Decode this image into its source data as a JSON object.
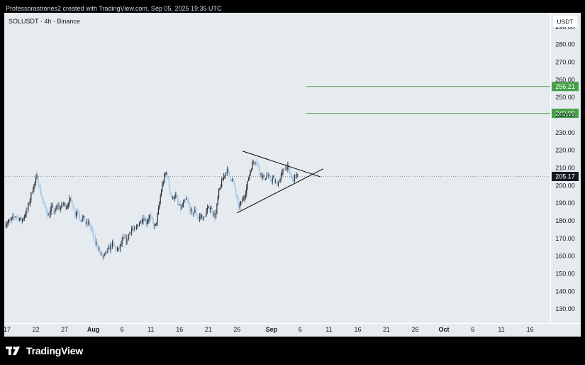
{
  "header": {
    "caption": "Professorastrones2 created with TradingView.com, Sep 05, 2025 19:35 UTC"
  },
  "footer": {
    "logo_text": "TradingView",
    "logo_icon": "tradingview-logo-icon"
  },
  "colors": {
    "page_background": "#000000",
    "chart_background": "#e6ebef",
    "candle_up": "#2b2e36",
    "candle_down": "#9fc6ea",
    "level_line": "#45a046",
    "price_badge": "#131722",
    "pattern_lines": "#000000"
  },
  "chart_data": {
    "type": "candlestick",
    "symbol_label": "SOLUSDT · 4h · Binance",
    "currency_label": "USDT",
    "ylim": [
      122,
      298
    ],
    "x_domain": [
      "2025-07-16T12:00",
      "2025-10-19T12:00"
    ],
    "y_ticks": [
      130,
      140,
      150,
      160,
      170,
      180,
      190,
      200,
      210,
      220,
      230,
      240,
      250,
      260,
      270,
      280,
      290
    ],
    "x_ticks": [
      {
        "label": "17",
        "date": "2025-07-17",
        "bold": false
      },
      {
        "label": "22",
        "date": "2025-07-22",
        "bold": false
      },
      {
        "label": "27",
        "date": "2025-07-27",
        "bold": false
      },
      {
        "label": "Aug",
        "date": "2025-08-01",
        "bold": true
      },
      {
        "label": "6",
        "date": "2025-08-06",
        "bold": false
      },
      {
        "label": "11",
        "date": "2025-08-11",
        "bold": false
      },
      {
        "label": "16",
        "date": "2025-08-16",
        "bold": false
      },
      {
        "label": "21",
        "date": "2025-08-21",
        "bold": false
      },
      {
        "label": "26",
        "date": "2025-08-26",
        "bold": false
      },
      {
        "label": "Sep",
        "date": "2025-09-01",
        "bold": true
      },
      {
        "label": "6",
        "date": "2025-09-06",
        "bold": false
      },
      {
        "label": "11",
        "date": "2025-09-11",
        "bold": false
      },
      {
        "label": "16",
        "date": "2025-09-16",
        "bold": false
      },
      {
        "label": "21",
        "date": "2025-09-21",
        "bold": false
      },
      {
        "label": "26",
        "date": "2025-09-26",
        "bold": false
      },
      {
        "label": "Oct",
        "date": "2025-10-01",
        "bold": true
      },
      {
        "label": "6",
        "date": "2025-10-06",
        "bold": false
      },
      {
        "label": "11",
        "date": "2025-10-11",
        "bold": false
      },
      {
        "label": "16",
        "date": "2025-10-16",
        "bold": false
      }
    ],
    "close_path": [
      {
        "date": "2025-07-16T12:00",
        "value": 178
      },
      {
        "date": "2025-07-17T12:00",
        "value": 180
      },
      {
        "date": "2025-07-18T12:00",
        "value": 183
      },
      {
        "date": "2025-07-19T12:00",
        "value": 180
      },
      {
        "date": "2025-07-20T12:00",
        "value": 186
      },
      {
        "date": "2025-07-21T06:00",
        "value": 196
      },
      {
        "date": "2025-07-21T18:00",
        "value": 201
      },
      {
        "date": "2025-07-22T06:00",
        "value": 205
      },
      {
        "date": "2025-07-22T18:00",
        "value": 197
      },
      {
        "date": "2025-07-23T06:00",
        "value": 190
      },
      {
        "date": "2025-07-23T18:00",
        "value": 187
      },
      {
        "date": "2025-07-24T06:00",
        "value": 182
      },
      {
        "date": "2025-07-24T18:00",
        "value": 188
      },
      {
        "date": "2025-07-25T06:00",
        "value": 184
      },
      {
        "date": "2025-07-25T18:00",
        "value": 189
      },
      {
        "date": "2025-07-26T06:00",
        "value": 187
      },
      {
        "date": "2025-07-26T18:00",
        "value": 190
      },
      {
        "date": "2025-07-27T06:00",
        "value": 188
      },
      {
        "date": "2025-07-27T18:00",
        "value": 191
      },
      {
        "date": "2025-07-28T06:00",
        "value": 192
      },
      {
        "date": "2025-07-28T18:00",
        "value": 184
      },
      {
        "date": "2025-07-29T06:00",
        "value": 186
      },
      {
        "date": "2025-07-29T18:00",
        "value": 181
      },
      {
        "date": "2025-07-30T06:00",
        "value": 182
      },
      {
        "date": "2025-07-30T18:00",
        "value": 178
      },
      {
        "date": "2025-07-31T06:00",
        "value": 179
      },
      {
        "date": "2025-07-31T18:00",
        "value": 174
      },
      {
        "date": "2025-08-01T06:00",
        "value": 168
      },
      {
        "date": "2025-08-01T18:00",
        "value": 166
      },
      {
        "date": "2025-08-02T06:00",
        "value": 161
      },
      {
        "date": "2025-08-02T18:00",
        "value": 159
      },
      {
        "date": "2025-08-03T06:00",
        "value": 162
      },
      {
        "date": "2025-08-03T18:00",
        "value": 164
      },
      {
        "date": "2025-08-04T06:00",
        "value": 167
      },
      {
        "date": "2025-08-04T18:00",
        "value": 165
      },
      {
        "date": "2025-08-05T06:00",
        "value": 163
      },
      {
        "date": "2025-08-05T18:00",
        "value": 166
      },
      {
        "date": "2025-08-06T06:00",
        "value": 170
      },
      {
        "date": "2025-08-06T18:00",
        "value": 168
      },
      {
        "date": "2025-08-07T06:00",
        "value": 173
      },
      {
        "date": "2025-08-07T18:00",
        "value": 176
      },
      {
        "date": "2025-08-08T06:00",
        "value": 174
      },
      {
        "date": "2025-08-08T18:00",
        "value": 178
      },
      {
        "date": "2025-08-09T06:00",
        "value": 180
      },
      {
        "date": "2025-08-09T18:00",
        "value": 182
      },
      {
        "date": "2025-08-10T06:00",
        "value": 179
      },
      {
        "date": "2025-08-10T18:00",
        "value": 183
      },
      {
        "date": "2025-08-11T06:00",
        "value": 180
      },
      {
        "date": "2025-08-11T18:00",
        "value": 176
      },
      {
        "date": "2025-08-12T06:00",
        "value": 184
      },
      {
        "date": "2025-08-12T18:00",
        "value": 196
      },
      {
        "date": "2025-08-13T06:00",
        "value": 204
      },
      {
        "date": "2025-08-13T18:00",
        "value": 208
      },
      {
        "date": "2025-08-14T06:00",
        "value": 198
      },
      {
        "date": "2025-08-14T18:00",
        "value": 192
      },
      {
        "date": "2025-08-15T06:00",
        "value": 195
      },
      {
        "date": "2025-08-15T18:00",
        "value": 189
      },
      {
        "date": "2025-08-16T06:00",
        "value": 187
      },
      {
        "date": "2025-08-16T18:00",
        "value": 190
      },
      {
        "date": "2025-08-17T06:00",
        "value": 192
      },
      {
        "date": "2025-08-17T18:00",
        "value": 187
      },
      {
        "date": "2025-08-18T06:00",
        "value": 184
      },
      {
        "date": "2025-08-18T18:00",
        "value": 186
      },
      {
        "date": "2025-08-19T06:00",
        "value": 181
      },
      {
        "date": "2025-08-19T18:00",
        "value": 183
      },
      {
        "date": "2025-08-20T06:00",
        "value": 181
      },
      {
        "date": "2025-08-20T18:00",
        "value": 186
      },
      {
        "date": "2025-08-21T06:00",
        "value": 188
      },
      {
        "date": "2025-08-21T18:00",
        "value": 185
      },
      {
        "date": "2025-08-22T06:00",
        "value": 182
      },
      {
        "date": "2025-08-22T18:00",
        "value": 195
      },
      {
        "date": "2025-08-23T06:00",
        "value": 201
      },
      {
        "date": "2025-08-23T18:00",
        "value": 206
      },
      {
        "date": "2025-08-24T06:00",
        "value": 209
      },
      {
        "date": "2025-08-24T18:00",
        "value": 205
      },
      {
        "date": "2025-08-25T06:00",
        "value": 203
      },
      {
        "date": "2025-08-25T18:00",
        "value": 196
      },
      {
        "date": "2025-08-26T06:00",
        "value": 188
      },
      {
        "date": "2025-08-26T18:00",
        "value": 190
      },
      {
        "date": "2025-08-27T06:00",
        "value": 194
      },
      {
        "date": "2025-08-27T18:00",
        "value": 200
      },
      {
        "date": "2025-08-28T06:00",
        "value": 208
      },
      {
        "date": "2025-08-28T18:00",
        "value": 213
      },
      {
        "date": "2025-08-29T06:00",
        "value": 215
      },
      {
        "date": "2025-08-29T18:00",
        "value": 210
      },
      {
        "date": "2025-08-30T06:00",
        "value": 206
      },
      {
        "date": "2025-08-30T18:00",
        "value": 204
      },
      {
        "date": "2025-08-31T06:00",
        "value": 206
      },
      {
        "date": "2025-08-31T18:00",
        "value": 203
      },
      {
        "date": "2025-09-01T06:00",
        "value": 204
      },
      {
        "date": "2025-09-01T18:00",
        "value": 201
      },
      {
        "date": "2025-09-02T06:00",
        "value": 202
      },
      {
        "date": "2025-09-02T18:00",
        "value": 206
      },
      {
        "date": "2025-09-03T06:00",
        "value": 210
      },
      {
        "date": "2025-09-03T18:00",
        "value": 211
      },
      {
        "date": "2025-09-04T06:00",
        "value": 206
      },
      {
        "date": "2025-09-04T18:00",
        "value": 203
      },
      {
        "date": "2025-09-05T06:00",
        "value": 206
      },
      {
        "date": "2025-09-05T16:00",
        "value": 205.17
      }
    ],
    "horizontal_levels": [
      {
        "value": 256.21,
        "label": "256.21",
        "start_date": "2025-09-07",
        "style": "solid"
      },
      {
        "value": 240.98,
        "label": "240.98",
        "start_date": "2025-09-07",
        "style": "solid"
      }
    ],
    "current_price": {
      "value": 205.17,
      "label": "205.17",
      "style": "dotted"
    },
    "triangle_pattern": {
      "upper": {
        "from": {
          "date": "2025-08-27",
          "value": 219.5
        },
        "to": {
          "date": "2025-09-09T12:00",
          "value": 205
        }
      },
      "lower": {
        "from": {
          "date": "2025-08-26",
          "value": 184.5
        },
        "to": {
          "date": "2025-09-10",
          "value": 209.5
        }
      }
    },
    "grid": false
  }
}
